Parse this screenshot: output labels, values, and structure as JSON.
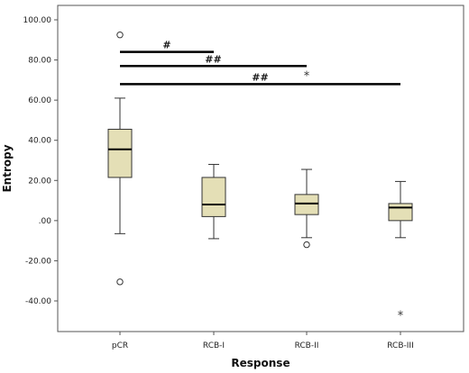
{
  "chart_data": {
    "type": "box",
    "xlabel": "Response",
    "ylabel": "Entropy",
    "ylim": [
      -60,
      105
    ],
    "y_ticks": [
      {
        "value": 100,
        "label": "100.00"
      },
      {
        "value": 80,
        "label": "80.00"
      },
      {
        "value": 60,
        "label": "60.00"
      },
      {
        "value": 40,
        "label": "40.00"
      },
      {
        "value": 20,
        "label": "20.00"
      },
      {
        "value": 0,
        "label": ".00"
      },
      {
        "value": -20,
        "label": "-20.00"
      },
      {
        "value": -40,
        "label": "-40.00"
      }
    ],
    "categories": [
      "pCR",
      "RCB-I",
      "RCB-II",
      "RCB-III"
    ],
    "boxes": [
      {
        "category": "pCR",
        "whisker_low": -6.5,
        "q1": 21.5,
        "median": 35.5,
        "q3": 45.5,
        "whisker_high": 61,
        "outliers": [
          92.5,
          -30.5
        ],
        "extremes": []
      },
      {
        "category": "RCB-I",
        "whisker_low": -9,
        "q1": 2,
        "median": 8,
        "q3": 21.5,
        "whisker_high": 28,
        "outliers": [],
        "extremes": []
      },
      {
        "category": "RCB-II",
        "whisker_low": -8.5,
        "q1": 3,
        "median": 8.5,
        "q3": 13,
        "whisker_high": 25.5,
        "outliers": [
          -12
        ],
        "extremes": [
          72.5
        ]
      },
      {
        "category": "RCB-III",
        "whisker_low": -8.5,
        "q1": 0,
        "median": 6.5,
        "q3": 8.5,
        "whisker_high": 19.5,
        "outliers": [],
        "extremes": [
          -47
        ]
      }
    ],
    "annotations": [
      {
        "from": "pCR",
        "to": "RCB-I",
        "y": 84,
        "label": "#"
      },
      {
        "from": "pCR",
        "to": "RCB-II",
        "y": 77,
        "label": "##"
      },
      {
        "from": "pCR",
        "to": "RCB-III",
        "y": 68,
        "label": "##"
      }
    ],
    "grid": false,
    "legend": "none",
    "colors": {
      "box_fill": "#e4dfb6",
      "box_stroke": "#333333",
      "line": "#000000",
      "plot_border": "#555555"
    }
  }
}
